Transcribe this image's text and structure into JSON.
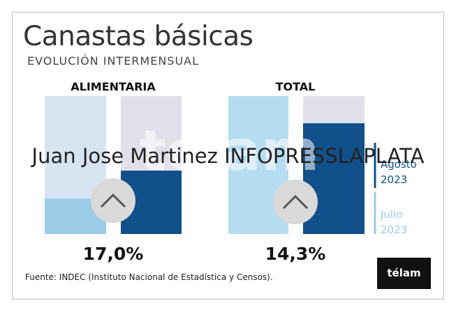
{
  "header": {
    "title": "Canastas básicas",
    "subtitle": "EVOLUCIÓN INTERMENSUAL"
  },
  "groups": [
    {
      "label": "ALIMENTARIA",
      "value_label": "17,0%"
    },
    {
      "label": "TOTAL",
      "value_label": "14,3%"
    }
  ],
  "legend": [
    {
      "label": "Agosto 2023",
      "color": "#11508a"
    },
    {
      "label": "Julio 2023",
      "color": "#9ccbe8"
    }
  ],
  "source": "Fuente: INDEC (Instituto Nacional de Estadística y Censos).",
  "logo": "télam",
  "watermark_brand": "télam",
  "watermark": "Juan Jose Martinez INFOPRESSLAPLATA"
}
